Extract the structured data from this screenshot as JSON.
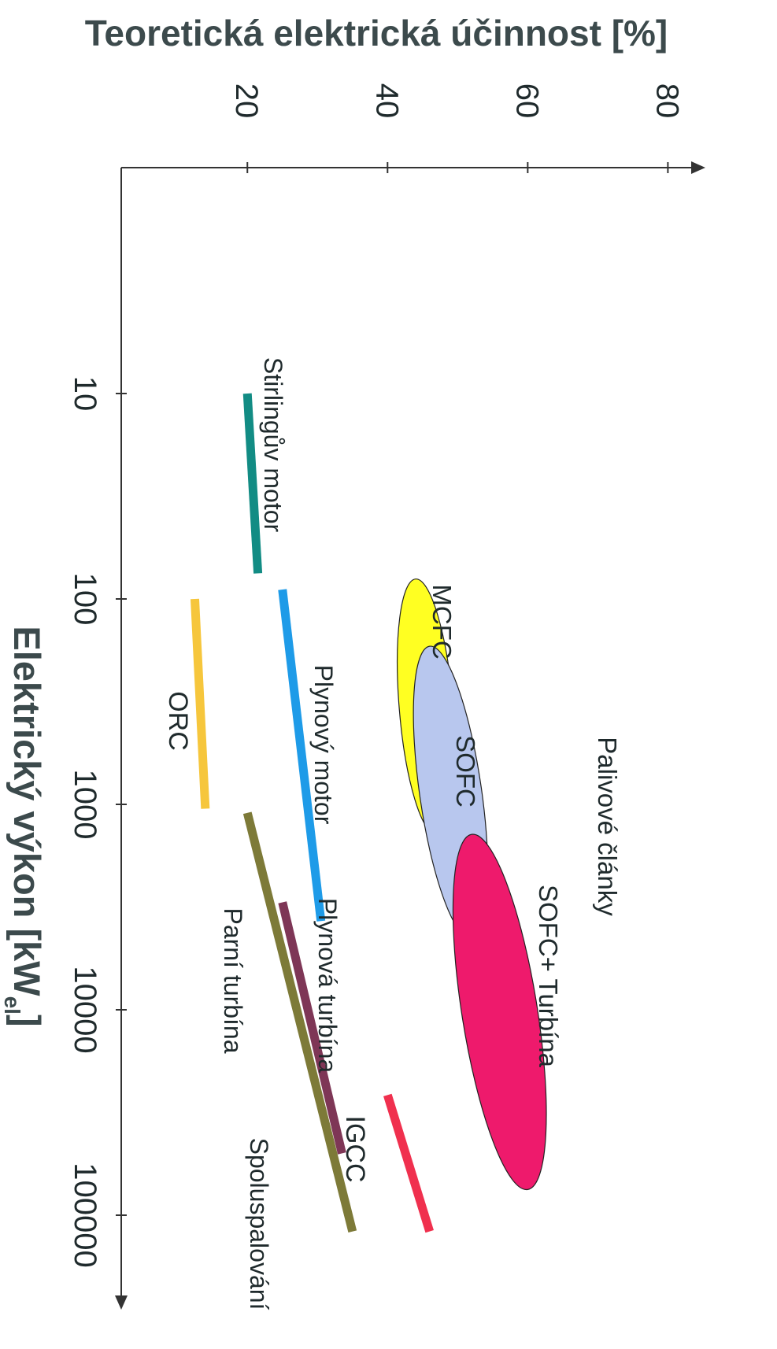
{
  "chart_data": {
    "type": "range",
    "orientation": "rotated-90-clockwise",
    "title": "",
    "xlabel": "Elektrický výkon [kW",
    "xlabel_subscript": "el",
    "xlabel_suffix": "]",
    "ylabel": "Teoretická elektrická účinnost [%]",
    "x_scale": "log",
    "x_ticks": [
      10,
      100,
      1000,
      10000,
      100000
    ],
    "x_tick_labels": [
      "10",
      "100",
      "1000",
      "10000",
      "100000"
    ],
    "y_ticks": [
      20,
      40,
      60,
      80
    ],
    "y_tick_labels": [
      "20",
      "40",
      "60",
      "80"
    ],
    "xlim": [
      3,
      200000
    ],
    "ylim": [
      2,
      84
    ],
    "grid": false,
    "legend": "none",
    "annotations": {
      "fuel_cells": "Palivové články"
    },
    "series": [
      {
        "name": "Stirlingův motor",
        "shape": "line",
        "color": "#128c84",
        "points": [
          {
            "x": 10,
            "y": 20
          },
          {
            "x": 75,
            "y": 21.5
          }
        ]
      },
      {
        "name": "ORC",
        "shape": "line",
        "color": "#f6c63c",
        "points": [
          {
            "x": 100,
            "y": 12.5
          },
          {
            "x": 1050,
            "y": 14
          }
        ]
      },
      {
        "name": "Plynový motor",
        "shape": "line",
        "color": "#1e9be8",
        "points": [
          {
            "x": 90,
            "y": 25
          },
          {
            "x": 3700,
            "y": 30.5
          }
        ]
      },
      {
        "name": "Parní turbína",
        "shape": "line",
        "color": "#7d7a38",
        "points": [
          {
            "x": 1100,
            "y": 20
          },
          {
            "x": 120000,
            "y": 35
          }
        ]
      },
      {
        "name": "Plynová turbína",
        "shape": "line",
        "color": "#7e3656",
        "points": [
          {
            "x": 3000,
            "y": 25
          },
          {
            "x": 50000,
            "y": 33.5
          }
        ]
      },
      {
        "name": "IGCC",
        "shape": "line",
        "color": "#f0304e",
        "points": [
          {
            "x": 26000,
            "y": 40
          },
          {
            "x": 120000,
            "y": 46
          }
        ]
      },
      {
        "name": "MCFC",
        "shape": "ellipse",
        "color": "#ffff22",
        "points": [
          {
            "x": 80,
            "y": 44
          },
          {
            "x": 1400,
            "y": 47
          }
        ]
      },
      {
        "name": "SOFC",
        "shape": "ellipse",
        "color": "#b8c7ee",
        "points": [
          {
            "x": 170,
            "y": 46
          },
          {
            "x": 4500,
            "y": 52
          }
        ]
      },
      {
        "name": "SOFC+ Turbína",
        "shape": "ellipse",
        "color": "#ee1a6c",
        "points": [
          {
            "x": 1400,
            "y": 52
          },
          {
            "x": 75000,
            "y": 60
          }
        ]
      }
    ],
    "labels": {
      "stirling": "Stirlingův motor",
      "orc": "ORC",
      "plynovy_motor": "Plynový motor",
      "parni_turbina": "Parní turbína",
      "plynova_turbina": "Plynová turbína",
      "igcc": "IGCC",
      "spoluspalovani": "Spoluspalování",
      "mcfc": "MCFC",
      "sofc": "SOFC",
      "sofc_turbina": "SOFC+ Turbína"
    }
  }
}
